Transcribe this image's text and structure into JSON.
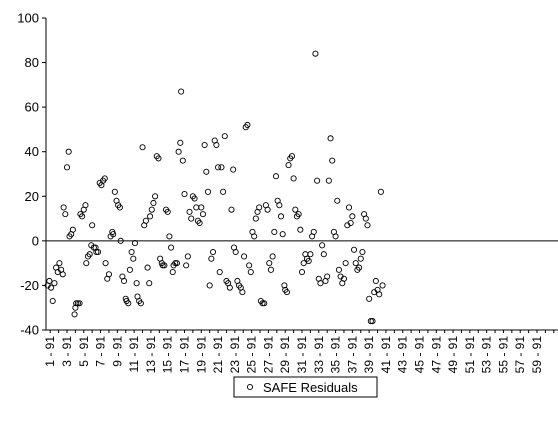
{
  "chart_data": {
    "type": "scatter",
    "title": "",
    "xlabel": "",
    "ylabel": "",
    "ylim": [
      -40,
      100
    ],
    "yticks": [
      -40,
      -20,
      0,
      20,
      40,
      60,
      80,
      100
    ],
    "xlim": [
      0.5,
      61.5
    ],
    "x_tick_labels": [
      "1 - 91",
      "3 - 91",
      "5 - 91",
      "7 - 91",
      "9 - 91",
      "11 - 91",
      "13 - 91",
      "15 - 91",
      "17 - 91",
      "19 - 91",
      "21 - 91",
      "23 - 91",
      "25 - 91",
      "27 - 91",
      "29 - 91",
      "31 - 91",
      "33 - 91",
      "35 - 91",
      "37 - 91",
      "39 - 91",
      "41 - 91",
      "43 - 91",
      "45 - 91",
      "47 - 91",
      "49 - 91",
      "51 - 91",
      "53 - 91",
      "55 - 91",
      "57 - 91",
      "59 - 91"
    ],
    "x_tick_positions": [
      1,
      3,
      5,
      7,
      9,
      11,
      13,
      15,
      17,
      19,
      21,
      23,
      25,
      27,
      29,
      31,
      33,
      35,
      37,
      39,
      41,
      43,
      45,
      47,
      49,
      51,
      53,
      55,
      57,
      59
    ],
    "gridlines": false,
    "zero_line": true,
    "legend_position": "bottom-center",
    "series": [
      {
        "name": "SAFE Residuals",
        "marker": "open-circle",
        "color": "#000000",
        "points": [
          [
            0.7,
            -20
          ],
          [
            0.9,
            -18
          ],
          [
            1.1,
            -21
          ],
          [
            1.3,
            -27
          ],
          [
            1.5,
            -19
          ],
          [
            1.7,
            -12
          ],
          [
            1.9,
            -14
          ],
          [
            2.1,
            -10
          ],
          [
            2.3,
            -13
          ],
          [
            2.5,
            -15
          ],
          [
            2.6,
            15
          ],
          [
            2.8,
            12
          ],
          [
            3.0,
            33
          ],
          [
            3.2,
            40
          ],
          [
            3.3,
            2
          ],
          [
            3.5,
            3
          ],
          [
            3.7,
            5
          ],
          [
            3.9,
            -33
          ],
          [
            4.0,
            -30
          ],
          [
            4.1,
            -28
          ],
          [
            4.3,
            -28
          ],
          [
            4.5,
            -28
          ],
          [
            4.6,
            12
          ],
          [
            4.8,
            11
          ],
          [
            5.0,
            14
          ],
          [
            5.2,
            16
          ],
          [
            5.3,
            -10
          ],
          [
            5.5,
            -7
          ],
          [
            5.7,
            -6
          ],
          [
            5.9,
            -2
          ],
          [
            6.0,
            7
          ],
          [
            6.2,
            -3
          ],
          [
            6.4,
            -3
          ],
          [
            6.5,
            -5
          ],
          [
            6.7,
            -5
          ],
          [
            6.9,
            26
          ],
          [
            7.1,
            25
          ],
          [
            7.3,
            27
          ],
          [
            7.5,
            28
          ],
          [
            7.6,
            -10
          ],
          [
            7.8,
            -17
          ],
          [
            8.0,
            -15
          ],
          [
            8.2,
            2
          ],
          [
            8.4,
            4
          ],
          [
            8.5,
            3
          ],
          [
            8.7,
            22
          ],
          [
            8.9,
            18
          ],
          [
            9.1,
            16
          ],
          [
            9.3,
            15
          ],
          [
            9.4,
            0
          ],
          [
            9.6,
            -16
          ],
          [
            9.8,
            -18
          ],
          [
            10.0,
            -26
          ],
          [
            10.1,
            -27
          ],
          [
            10.3,
            -28
          ],
          [
            10.5,
            -13
          ],
          [
            10.7,
            -5
          ],
          [
            10.9,
            -8
          ],
          [
            11.1,
            -1
          ],
          [
            11.3,
            -19
          ],
          [
            11.4,
            -25
          ],
          [
            11.6,
            -27
          ],
          [
            11.8,
            -28
          ],
          [
            12.0,
            42
          ],
          [
            12.2,
            7
          ],
          [
            12.4,
            9
          ],
          [
            12.6,
            -12
          ],
          [
            12.8,
            -19
          ],
          [
            12.9,
            11
          ],
          [
            13.1,
            14
          ],
          [
            13.3,
            17
          ],
          [
            13.5,
            20
          ],
          [
            13.7,
            38
          ],
          [
            13.9,
            37
          ],
          [
            14.1,
            -8
          ],
          [
            14.3,
            -10
          ],
          [
            14.4,
            -11
          ],
          [
            14.6,
            -11
          ],
          [
            14.8,
            14
          ],
          [
            15.0,
            13
          ],
          [
            15.2,
            2
          ],
          [
            15.4,
            -3
          ],
          [
            15.6,
            -14
          ],
          [
            15.7,
            -11
          ],
          [
            15.9,
            -10
          ],
          [
            16.1,
            -10
          ],
          [
            16.3,
            40
          ],
          [
            16.5,
            44
          ],
          [
            16.6,
            67
          ],
          [
            16.8,
            36
          ],
          [
            17.0,
            21
          ],
          [
            17.2,
            -11
          ],
          [
            17.4,
            -7
          ],
          [
            17.6,
            13
          ],
          [
            17.8,
            10
          ],
          [
            18.0,
            20
          ],
          [
            18.2,
            19
          ],
          [
            18.4,
            15
          ],
          [
            18.6,
            9
          ],
          [
            18.8,
            8
          ],
          [
            19.0,
            15
          ],
          [
            19.2,
            12
          ],
          [
            19.4,
            43
          ],
          [
            19.6,
            31
          ],
          [
            19.8,
            22
          ],
          [
            20.0,
            -20
          ],
          [
            20.2,
            -8
          ],
          [
            20.4,
            -5
          ],
          [
            20.6,
            45
          ],
          [
            20.8,
            43
          ],
          [
            21.0,
            33
          ],
          [
            21.2,
            -14
          ],
          [
            21.4,
            33
          ],
          [
            21.6,
            22
          ],
          [
            21.8,
            47
          ],
          [
            22.0,
            -18
          ],
          [
            22.2,
            -19
          ],
          [
            22.4,
            -21
          ],
          [
            22.6,
            14
          ],
          [
            22.8,
            32
          ],
          [
            22.9,
            -3
          ],
          [
            23.1,
            -5
          ],
          [
            23.3,
            -18
          ],
          [
            23.5,
            -20
          ],
          [
            23.7,
            -21
          ],
          [
            23.9,
            -23
          ],
          [
            24.1,
            -7
          ],
          [
            24.3,
            51
          ],
          [
            24.5,
            52
          ],
          [
            24.7,
            -11
          ],
          [
            24.9,
            -14
          ],
          [
            25.1,
            4
          ],
          [
            25.3,
            2
          ],
          [
            25.5,
            10
          ],
          [
            25.7,
            13
          ],
          [
            25.9,
            15
          ],
          [
            26.1,
            -27
          ],
          [
            26.3,
            -28
          ],
          [
            26.5,
            -28
          ],
          [
            26.7,
            16
          ],
          [
            26.9,
            14
          ],
          [
            27.1,
            -10
          ],
          [
            27.3,
            -13
          ],
          [
            27.5,
            -7
          ],
          [
            27.7,
            4
          ],
          [
            27.9,
            29
          ],
          [
            28.1,
            18
          ],
          [
            28.3,
            16
          ],
          [
            28.5,
            11
          ],
          [
            28.7,
            3
          ],
          [
            28.9,
            -20
          ],
          [
            29.0,
            -22
          ],
          [
            29.2,
            -23
          ],
          [
            29.4,
            34
          ],
          [
            29.6,
            37
          ],
          [
            29.8,
            38
          ],
          [
            30.0,
            28
          ],
          [
            30.2,
            14
          ],
          [
            30.4,
            11
          ],
          [
            30.6,
            12
          ],
          [
            30.8,
            5
          ],
          [
            31.0,
            -14
          ],
          [
            31.2,
            -10
          ],
          [
            31.4,
            -6
          ],
          [
            31.6,
            -8
          ],
          [
            31.8,
            -9
          ],
          [
            32.0,
            -6
          ],
          [
            32.2,
            2
          ],
          [
            32.4,
            4
          ],
          [
            32.6,
            84
          ],
          [
            32.8,
            27
          ],
          [
            33.0,
            -17
          ],
          [
            33.2,
            -19
          ],
          [
            33.4,
            -2
          ],
          [
            33.6,
            -6
          ],
          [
            33.8,
            -18
          ],
          [
            34.0,
            -16
          ],
          [
            34.2,
            27
          ],
          [
            34.4,
            46
          ],
          [
            34.6,
            36
          ],
          [
            34.8,
            4
          ],
          [
            35.0,
            2
          ],
          [
            35.2,
            18
          ],
          [
            35.4,
            -13
          ],
          [
            35.6,
            -16
          ],
          [
            35.8,
            -19
          ],
          [
            36.0,
            -17
          ],
          [
            36.2,
            -10
          ],
          [
            36.4,
            7
          ],
          [
            36.6,
            15
          ],
          [
            36.8,
            8
          ],
          [
            37.0,
            11
          ],
          [
            37.2,
            -4
          ],
          [
            37.4,
            -10
          ],
          [
            37.6,
            -13
          ],
          [
            37.8,
            -12
          ],
          [
            38.0,
            -8
          ],
          [
            38.2,
            -5
          ],
          [
            38.4,
            12
          ],
          [
            38.6,
            10
          ],
          [
            38.8,
            7
          ],
          [
            39.0,
            -26
          ],
          [
            39.2,
            -36
          ],
          [
            39.4,
            -36
          ],
          [
            39.6,
            -23
          ],
          [
            39.8,
            -18
          ],
          [
            40.0,
            -22
          ],
          [
            40.2,
            -24
          ],
          [
            40.4,
            22
          ],
          [
            40.6,
            -20
          ]
        ]
      }
    ]
  },
  "legend": {
    "label": "SAFE Residuals"
  }
}
